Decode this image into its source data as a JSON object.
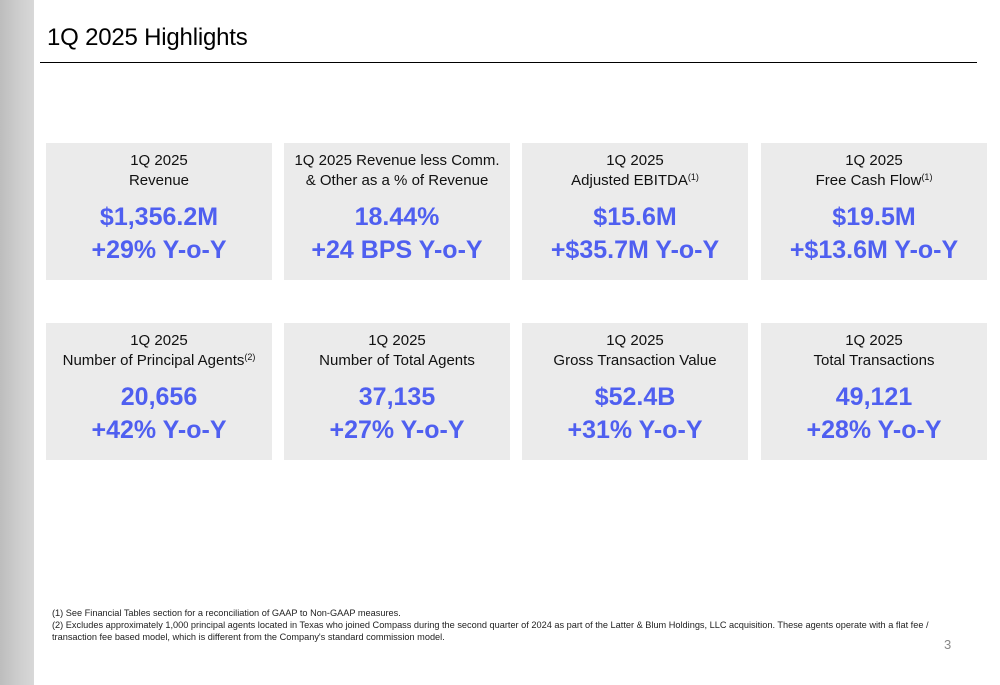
{
  "header": {
    "title": "1Q 2025 Highlights"
  },
  "cards": [
    {
      "period": "1Q 2025",
      "label": "Revenue",
      "sup": "",
      "value": "$1,356.2M",
      "change": "+29% Y-o-Y"
    },
    {
      "period": "1Q 2025 Revenue less Comm.",
      "label": "& Other as a % of Revenue",
      "sup": "",
      "value": "18.44%",
      "change": "+24 BPS Y-o-Y"
    },
    {
      "period": "1Q 2025",
      "label": "Adjusted EBITDA",
      "sup": "(1)",
      "value": "$15.6M",
      "change": "+$35.7M Y-o-Y"
    },
    {
      "period": "1Q 2025",
      "label": "Free Cash Flow",
      "sup": "(1)",
      "value": "$19.5M",
      "change": "+$13.6M Y-o-Y"
    },
    {
      "period": "1Q 2025",
      "label": "Number of Principal Agents",
      "sup": "(2)",
      "value": "20,656",
      "change": "+42% Y-o-Y"
    },
    {
      "period": "1Q 2025",
      "label": "Number of Total Agents",
      "sup": "",
      "value": "37,135",
      "change": "+27% Y-o-Y"
    },
    {
      "period": "1Q 2025",
      "label": "Gross Transaction Value",
      "sup": "",
      "value": "$52.4B",
      "change": "+31% Y-o-Y"
    },
    {
      "period": "1Q 2025",
      "label": "Total Transactions",
      "sup": "",
      "value": "49,121",
      "change": "+28% Y-o-Y"
    }
  ],
  "footnotes": {
    "note1": "(1) See Financial Tables section for a reconciliation of GAAP to Non-GAAP measures.",
    "note2": "(2) Excludes approximately 1,000 principal agents located in Texas who joined Compass during the second quarter of 2024 as part of the Latter & Blum Holdings, LLC acquisition. These agents operate with a flat fee / transaction fee based model, which is different from the Company's standard commission model."
  },
  "page_number": "3",
  "colors": {
    "accent": "#4f5ff0",
    "card_bg": "#ebebeb",
    "side_strip": "#c8c8c8"
  }
}
